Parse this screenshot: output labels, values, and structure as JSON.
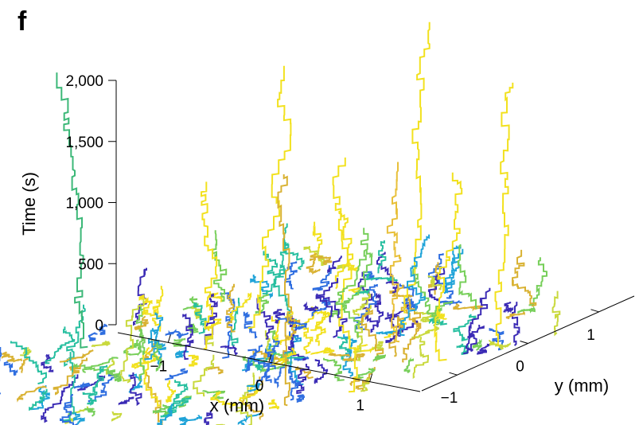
{
  "panel_label": "f",
  "chart_data": {
    "type": "line",
    "subtype": "3d-trajectories",
    "title": "",
    "xlabel": "x (mm)",
    "ylabel": "y (mm)",
    "zlabel": "Time (s)",
    "x_ticks": [
      "−1",
      "0",
      "1"
    ],
    "y_ticks": [
      "−1",
      "0",
      "1"
    ],
    "z_ticks": [
      "0",
      "500",
      "1,000",
      "1,500",
      "2,000"
    ],
    "x_tick_values": [
      -1,
      0,
      1
    ],
    "y_tick_values": [
      -1,
      0,
      1
    ],
    "z_tick_values": [
      0,
      500,
      1000,
      1500,
      2000
    ],
    "xlim": [
      -1.5,
      1.5
    ],
    "ylim": [
      -1.5,
      1.5
    ],
    "zlim": [
      0,
      2000
    ],
    "grid": false,
    "colormap": [
      "#3b2bb5",
      "#2f6ee0",
      "#1fa3d8",
      "#27bfa0",
      "#77cf5a",
      "#c9d93d",
      "#f2e11e",
      "#d9b233"
    ],
    "dense_track_count": 230,
    "series": [
      {
        "color": "#3cb878",
        "x": -1.15,
        "y": -0.35,
        "t_end": 2070
      },
      {
        "color": "#f2e11e",
        "x": -0.55,
        "y": 0.35,
        "t_end": 2020
      },
      {
        "color": "#f2e11e",
        "x": 0.1,
        "y": 1.0,
        "t_end": 2250
      },
      {
        "color": "#d9b233",
        "x": 1.25,
        "y": -0.55,
        "t_end": 2080
      },
      {
        "color": "#f2e11e",
        "x": 1.35,
        "y": -0.2,
        "t_end": 1950
      },
      {
        "color": "#f2e11e",
        "x": 1.3,
        "y": 0.85,
        "t_end": 2060
      },
      {
        "color": "#f2e11e",
        "x": 1.3,
        "y": 0.5,
        "t_end": 1540
      },
      {
        "color": "#e8c03a",
        "x": 0.65,
        "y": 0.6,
        "t_end": 1320
      },
      {
        "color": "#f2e11e",
        "x": -0.4,
        "y": -0.05,
        "t_end": 1500
      },
      {
        "color": "#1fa3d8",
        "x": 0.55,
        "y": 0.7,
        "t_end": 850
      },
      {
        "color": "#77cf5a",
        "x": 0.3,
        "y": 0.55,
        "t_end": 850
      }
    ]
  }
}
